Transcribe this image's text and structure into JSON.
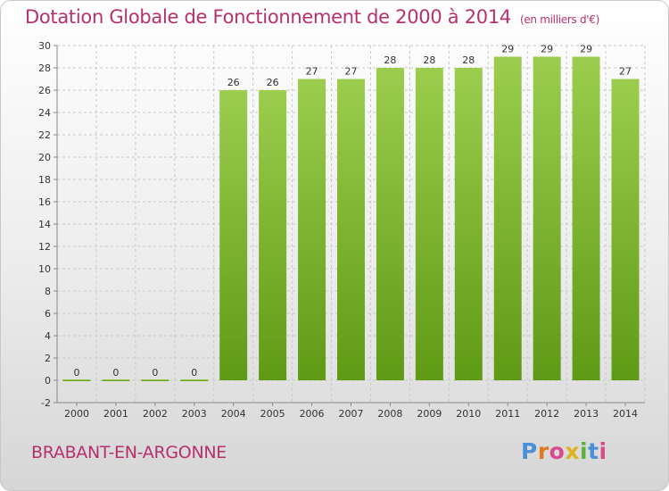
{
  "header": {
    "title": "Dotation Globale de Fonctionnement de 2000 à 2014",
    "unit": "(en milliers d'€)"
  },
  "footer": {
    "commune": "BRABANT-EN-ARGONNE",
    "logo": "Proxiti"
  },
  "colors": {
    "title": "#b7306e",
    "bar_light": "#9ccd4e",
    "bar_dark": "#5f9a15",
    "logo_letters": [
      "#4a8fd6",
      "#e07a1f",
      "#d94a8c",
      "#e0b21f",
      "#5bb13a",
      "#4a8fd6",
      "#d94a8c"
    ]
  },
  "chart_data": {
    "type": "bar",
    "title": "Dotation Globale de Fonctionnement de 2000 à 2014",
    "xlabel": "",
    "ylabel": "",
    "categories": [
      "2000",
      "2001",
      "2002",
      "2003",
      "2004",
      "2005",
      "2006",
      "2007",
      "2008",
      "2009",
      "2010",
      "2011",
      "2012",
      "2013",
      "2014"
    ],
    "values": [
      0,
      0,
      0,
      0,
      26,
      26,
      27,
      27,
      28,
      28,
      28,
      29,
      29,
      29,
      27
    ],
    "ylim": [
      -2,
      30
    ],
    "yticks": [
      -2,
      0,
      2,
      4,
      6,
      8,
      10,
      12,
      14,
      16,
      18,
      20,
      22,
      24,
      26,
      28,
      30
    ],
    "grid": true
  }
}
